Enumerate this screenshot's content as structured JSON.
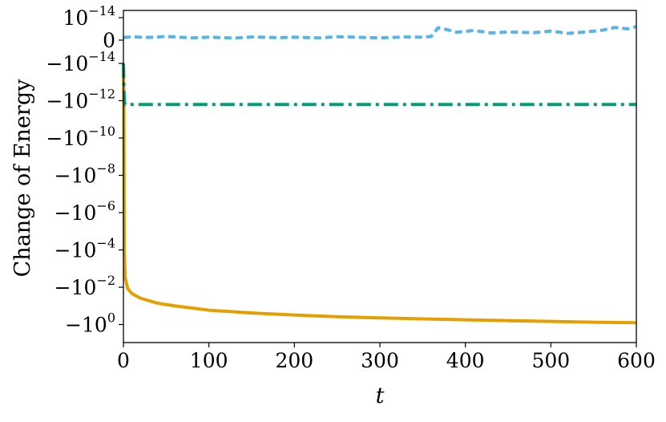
{
  "chart_data": {
    "type": "line",
    "title": "",
    "xlabel": "t",
    "ylabel": "Change of Energy",
    "xlim": [
      0,
      600
    ],
    "yscale": "symlog",
    "grid": false,
    "legend": "none",
    "x_ticks": [
      {
        "value": 0,
        "label": "0"
      },
      {
        "value": 100,
        "label": "100"
      },
      {
        "value": 200,
        "label": "200"
      },
      {
        "value": 300,
        "label": "300"
      },
      {
        "value": 400,
        "label": "400"
      },
      {
        "value": 500,
        "label": "500"
      },
      {
        "value": 600,
        "label": "600"
      }
    ],
    "y_ticks": [
      {
        "value": 1e-14,
        "base": "10",
        "exp": "−14",
        "sign": ""
      },
      {
        "value": 0,
        "base": "0",
        "exp": "",
        "sign": ""
      },
      {
        "value": -1e-14,
        "base": "10",
        "exp": "−14",
        "sign": "−"
      },
      {
        "value": -1e-12,
        "base": "10",
        "exp": "−12",
        "sign": "−"
      },
      {
        "value": -1e-10,
        "base": "10",
        "exp": "−10",
        "sign": "−"
      },
      {
        "value": -1e-08,
        "base": "10",
        "exp": "−8",
        "sign": "−"
      },
      {
        "value": -1e-06,
        "base": "10",
        "exp": "−6",
        "sign": "−"
      },
      {
        "value": -0.0001,
        "base": "10",
        "exp": "−4",
        "sign": "−"
      },
      {
        "value": -0.01,
        "base": "10",
        "exp": "−2",
        "sign": "−"
      },
      {
        "value": -1,
        "base": "10",
        "exp": "0",
        "sign": "−"
      }
    ],
    "series": [
      {
        "color": "#E69F00",
        "style": "solid",
        "x": [
          0,
          0.5,
          1,
          2,
          5,
          10,
          20,
          40,
          60,
          100,
          150,
          200,
          250,
          300,
          350,
          400,
          450,
          500,
          550,
          600
        ],
        "y": [
          -1e-14,
          -1e-12,
          -0.0001,
          -0.003,
          -0.012,
          -0.022,
          -0.039,
          -0.072,
          -0.1,
          -0.17,
          -0.24,
          -0.31,
          -0.38,
          -0.44,
          -0.5,
          -0.56,
          -0.62,
          -0.68,
          -0.75,
          -0.8
        ]
      },
      {
        "color": "#009E73",
        "style": "dashdot",
        "x": [
          0,
          1,
          2,
          5,
          50,
          100,
          200,
          300,
          400,
          500,
          600
        ],
        "y": [
          -1e-14,
          -1e-12,
          -1.6e-12,
          -1.6e-12,
          -1.6e-12,
          -1.6e-12,
          -1.6e-12,
          -1.6e-12,
          -1.6e-12,
          -1.6e-12,
          -1.6e-12
        ]
      },
      {
        "color": "#56B4E9",
        "style": "dashed",
        "x": [
          0,
          10,
          30,
          50,
          80,
          100,
          130,
          150,
          180,
          200,
          230,
          250,
          280,
          300,
          330,
          350,
          360,
          368,
          375,
          390,
          410,
          430,
          450,
          480,
          500,
          520,
          540,
          560,
          575,
          590,
          600
        ],
        "y": [
          1.2e-15,
          1.4e-15,
          1.2e-15,
          1.6e-15,
          1e-15,
          1.3e-15,
          9e-16,
          1.4e-15,
          1.1e-15,
          1.3e-15,
          1e-15,
          1.5e-15,
          1.2e-15,
          1e-15,
          1.4e-15,
          1.3e-15,
          1.6e-15,
          5.5e-15,
          5e-15,
          3.5e-15,
          4.3e-15,
          3.2e-15,
          3.6e-15,
          3.3e-15,
          4e-15,
          3e-15,
          3.6e-15,
          4.4e-15,
          5.6e-15,
          5e-15,
          6e-15
        ]
      }
    ]
  }
}
